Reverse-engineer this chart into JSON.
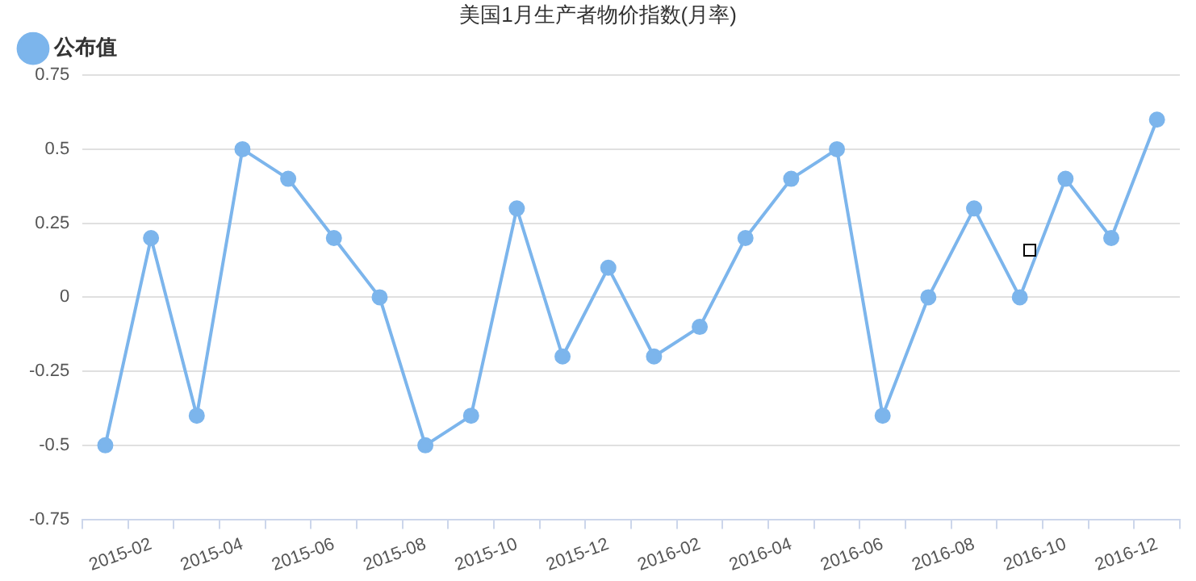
{
  "chart_data": {
    "type": "line",
    "title": "美国1月生产者物价指数(月率)",
    "categories": [
      null,
      "2015-02",
      null,
      "2015-04",
      null,
      "2015-06",
      null,
      "2015-08",
      null,
      "2015-10",
      null,
      "2015-12",
      null,
      "2016-02",
      null,
      "2016-04",
      null,
      "2016-06",
      null,
      "2016-08",
      null,
      "2016-10",
      null,
      "2016-12"
    ],
    "series": [
      {
        "name": "公布值",
        "color": "#7cb5ec",
        "values": [
          -0.5,
          0.2,
          -0.4,
          0.5,
          0.4,
          0.2,
          0,
          -0.5,
          -0.4,
          0.3,
          -0.2,
          0.1,
          -0.2,
          -0.1,
          0.2,
          0.4,
          0.5,
          -0.4,
          0,
          0.3,
          0,
          0.4,
          0.2,
          0.6
        ]
      }
    ],
    "ylim": [
      -0.75,
      0.75
    ],
    "yticks": [
      -0.75,
      -0.5,
      -0.25,
      0,
      0.25,
      0.5,
      0.75
    ],
    "grid": "y",
    "legend": "top left",
    "marker": "circle",
    "line_style": "solid"
  }
}
